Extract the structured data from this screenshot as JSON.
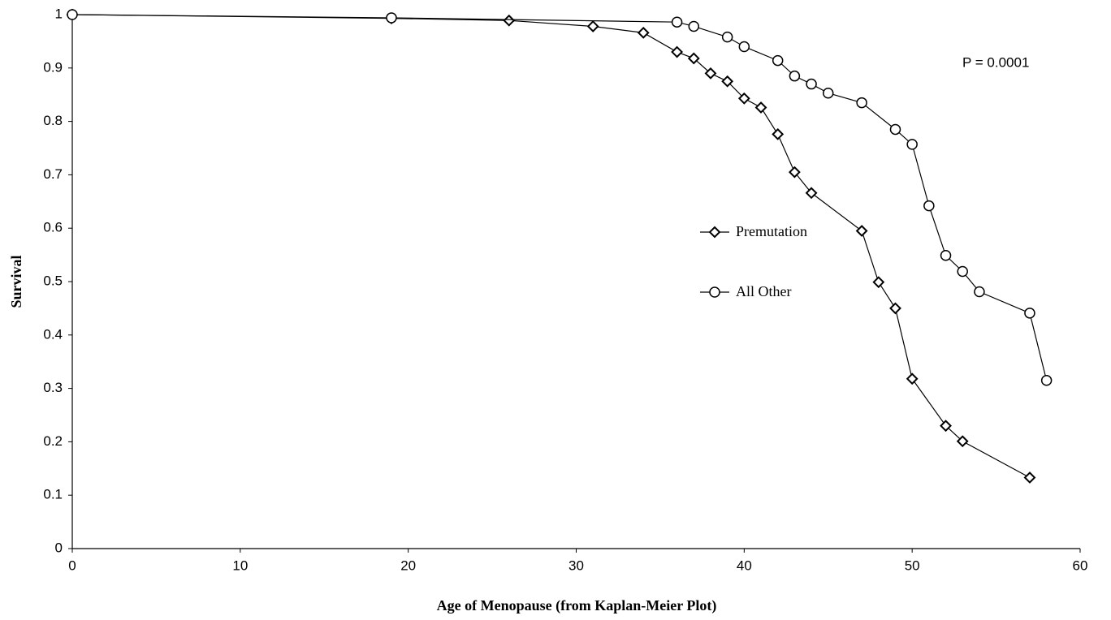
{
  "chart_data": {
    "type": "line",
    "xlabel": "Age of Menopause (from Kaplan-Meier Plot)",
    "ylabel": "Survival",
    "annotation": "P = 0.0001",
    "xlim": [
      0,
      60
    ],
    "xticks": [
      0,
      10,
      20,
      30,
      40,
      50,
      60
    ],
    "ylim": [
      0,
      1
    ],
    "yticks": [
      0,
      0.1,
      0.2,
      0.3,
      0.4,
      0.5,
      0.6,
      0.7,
      0.8,
      0.9,
      1
    ],
    "grid": false,
    "series": [
      {
        "name": "Premutation",
        "color": "#000000",
        "marker": "diamond",
        "x": [
          0,
          19,
          26,
          31,
          34,
          36,
          37,
          38,
          39,
          40,
          41,
          42,
          43,
          44,
          47,
          48,
          49,
          50,
          52,
          53,
          57
        ],
        "values": [
          1,
          0.993,
          0.989,
          0.978,
          0.966,
          0.93,
          0.918,
          0.89,
          0.875,
          0.843,
          0.826,
          0.776,
          0.705,
          0.666,
          0.595,
          0.499,
          0.45,
          0.318,
          0.23,
          0.201,
          0.133
        ]
      },
      {
        "name": "All Other",
        "color": "#000000",
        "marker": "circle",
        "x": [
          0,
          19,
          36,
          37,
          39,
          40,
          42,
          43,
          44,
          45,
          47,
          49,
          50,
          51,
          52,
          53,
          54,
          57,
          58
        ],
        "values": [
          1,
          0.994,
          0.986,
          0.978,
          0.958,
          0.94,
          0.914,
          0.885,
          0.87,
          0.853,
          0.835,
          0.785,
          0.757,
          0.642,
          0.549,
          0.519,
          0.481,
          0.441,
          0.315
        ]
      }
    ]
  }
}
